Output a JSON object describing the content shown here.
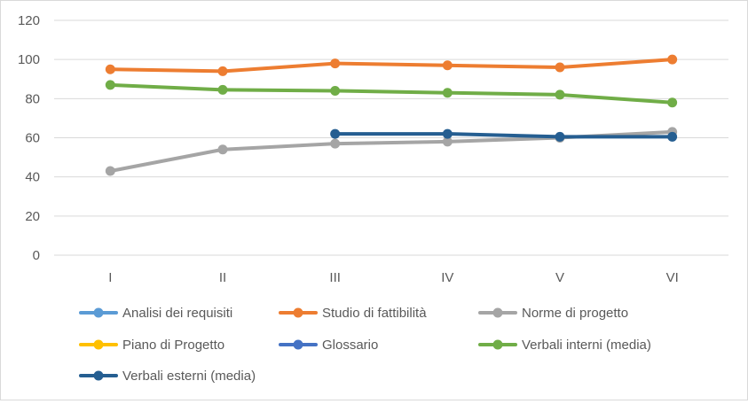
{
  "chart_data": {
    "type": "line",
    "title": "",
    "xlabel": "",
    "ylabel": "",
    "categories": [
      "I",
      "II",
      "III",
      "IV",
      "V",
      "VI"
    ],
    "ylim": [
      0,
      120
    ],
    "yticks": [
      0,
      20,
      40,
      60,
      80,
      100,
      120
    ],
    "grid": "horizontal",
    "legend_position": "bottom",
    "series": [
      {
        "name": "Analisi dei requisiti",
        "color": "#5b9bd5",
        "values": [
          null,
          null,
          null,
          null,
          null,
          null
        ]
      },
      {
        "name": "Studio di fattibilità",
        "color": "#ed7d31",
        "values": [
          95,
          94,
          98,
          97,
          96,
          100
        ]
      },
      {
        "name": "Norme di progetto",
        "color": "#a5a5a5",
        "values": [
          43,
          54,
          57,
          58,
          60,
          63
        ]
      },
      {
        "name": "Piano di Progetto",
        "color": "#ffc000",
        "values": [
          null,
          null,
          null,
          null,
          null,
          null
        ]
      },
      {
        "name": "Glossario",
        "color": "#4472c4",
        "values": [
          null,
          null,
          null,
          null,
          null,
          null
        ]
      },
      {
        "name": "Verbali interni (media)",
        "color": "#70ad47",
        "values": [
          87,
          84.5,
          84,
          83,
          82,
          78
        ]
      },
      {
        "name": "Verbali esterni (media)",
        "color": "#255e91",
        "values": [
          null,
          null,
          62,
          62,
          60.5,
          60.5
        ]
      }
    ]
  }
}
